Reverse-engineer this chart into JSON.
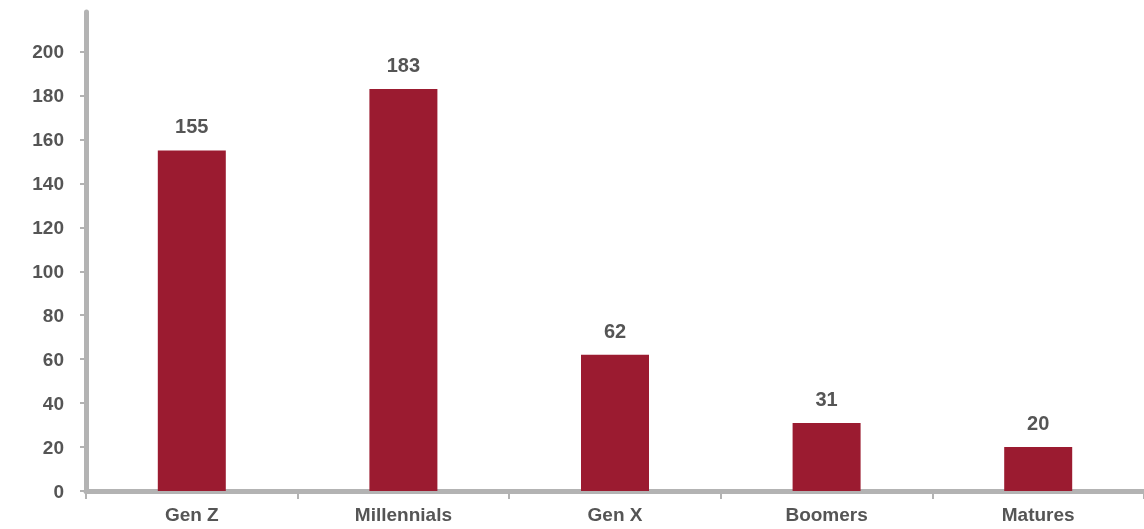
{
  "chart_data": {
    "type": "bar",
    "categories": [
      "Gen Z",
      "Millennials",
      "Gen X",
      "Boomers",
      "Matures"
    ],
    "values": [
      155,
      183,
      62,
      31,
      20
    ],
    "color": "#9b1b30",
    "ylim": [
      0,
      218
    ],
    "yticks": [
      0,
      20,
      40,
      60,
      80,
      100,
      120,
      140,
      160,
      180,
      200
    ],
    "grid": false,
    "data_labels": true
  }
}
